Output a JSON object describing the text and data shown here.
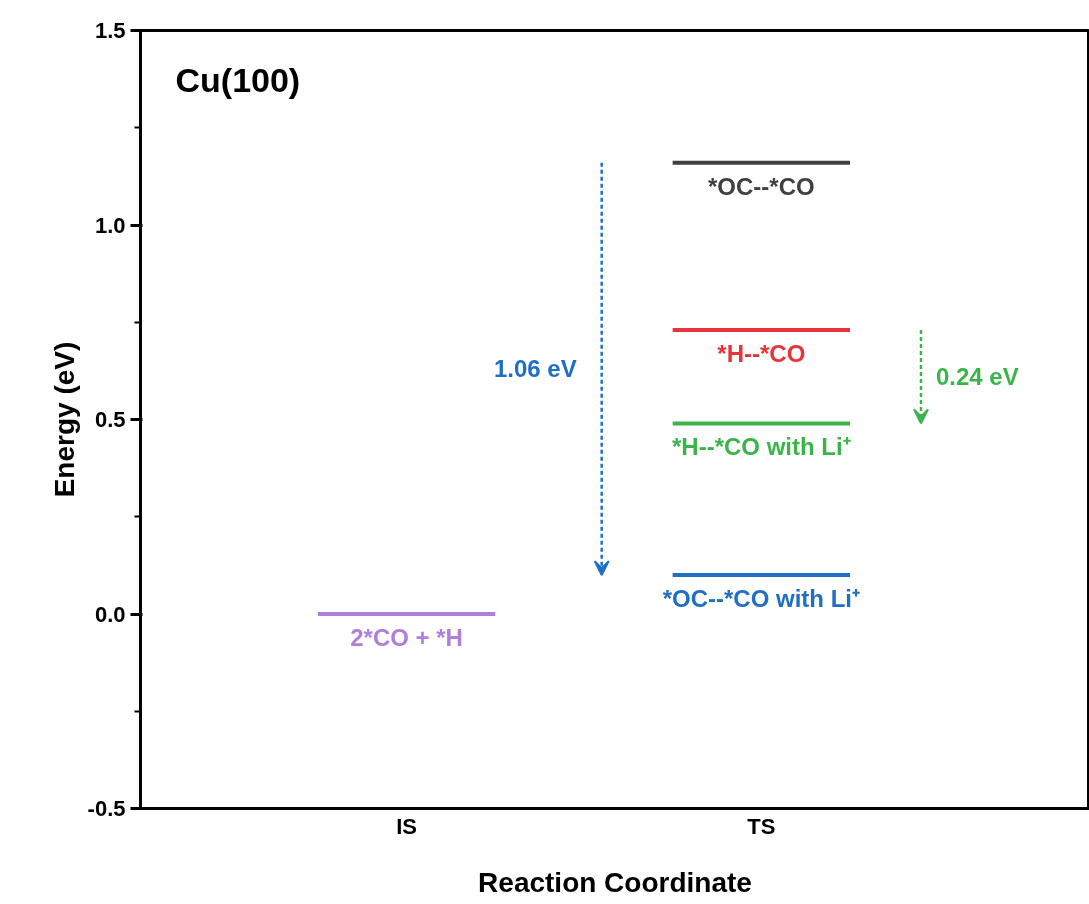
{
  "chart_data": {
    "type": "line",
    "title": "Cu(100)",
    "xlabel": "Reaction Coordinate",
    "ylabel": "Energy (eV)",
    "series": [
      {
        "name": "*OC--*CO",
        "color": "#404040",
        "values": [
          null,
          null,
          null,
          null,
          1.16,
          1.16,
          1.16
        ]
      },
      {
        "name": "*OC--*CO with Li⁺",
        "color": "#1f6fc6",
        "values": [
          null,
          null,
          null,
          null,
          0.1,
          0.1,
          0.1
        ]
      },
      {
        "name": "*H--*CO",
        "color": "#e8333a",
        "values": [
          null,
          null,
          null,
          null,
          0.73,
          0.73,
          0.73
        ]
      },
      {
        "name": "*H--*CO with Li⁺",
        "color": "#3cb44b",
        "values": [
          null,
          null,
          null,
          null,
          0.49,
          0.49,
          0.49
        ]
      },
      {
        "name": "2*CO + *H",
        "color": "#b07fd8",
        "values": [
          0,
          0,
          0,
          null,
          null,
          null,
          null
        ]
      }
    ],
    "categories": [
      null,
      "IS",
      null,
      null,
      null,
      "TS",
      null
    ],
    "annotations": [
      "1.06 eV",
      "0.24 eV"
    ],
    "ylim": [
      -0.5,
      1.5
    ],
    "yticks": [
      {
        "value": -0.5,
        "label": "-0.5"
      },
      {
        "value": 0,
        "label": "0.0"
      },
      {
        "value": 0.5,
        "label": "0.5"
      },
      {
        "value": 1.0,
        "label": "1.0"
      },
      {
        "value": 1.5,
        "label": "1.5"
      }
    ],
    "grid": false,
    "legend": false
  }
}
